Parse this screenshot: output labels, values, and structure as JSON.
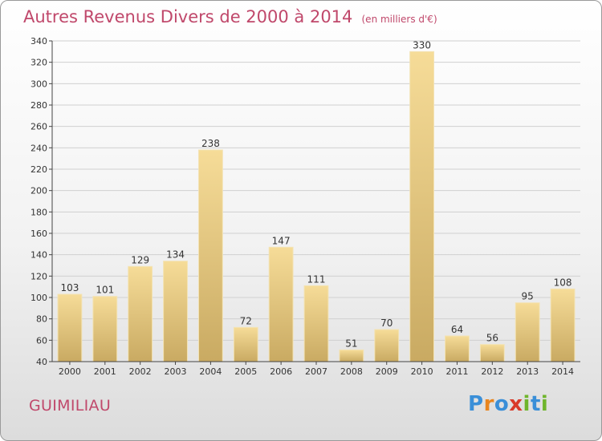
{
  "chart_data": {
    "type": "bar",
    "title": "Autres Revenus Divers de 2000 à 2014",
    "subtitle": "(en milliers d'€)",
    "categories": [
      "2000",
      "2001",
      "2002",
      "2003",
      "2004",
      "2005",
      "2006",
      "2007",
      "2008",
      "2009",
      "2010",
      "2011",
      "2012",
      "2013",
      "2014"
    ],
    "values": [
      103,
      101,
      129,
      134,
      238,
      72,
      147,
      111,
      51,
      70,
      330,
      64,
      56,
      95,
      108
    ],
    "ylim": [
      40,
      340
    ],
    "yticks": [
      40,
      60,
      80,
      100,
      120,
      140,
      160,
      180,
      200,
      220,
      240,
      260,
      280,
      300,
      320,
      340
    ],
    "grid": true,
    "bar_color": "#e8cf8a",
    "xlabel": "",
    "ylabel": ""
  },
  "place_name": "GUIMILIAU",
  "logo": {
    "text": "Proxiti",
    "letters": [
      {
        "char": "P",
        "color": "#3a8fd8"
      },
      {
        "char": "r",
        "color": "#e8851f"
      },
      {
        "char": "o",
        "color": "#3a8fd8"
      },
      {
        "char": "x",
        "color": "#d93a2a"
      },
      {
        "char": "i",
        "color": "#6fb52c"
      },
      {
        "char": "t",
        "color": "#3a8fd8"
      },
      {
        "char": "i",
        "color": "#6fb52c"
      }
    ]
  },
  "colors": {
    "title": "#c0486b",
    "axis": "#444444",
    "grid": "#d0d0d0"
  }
}
